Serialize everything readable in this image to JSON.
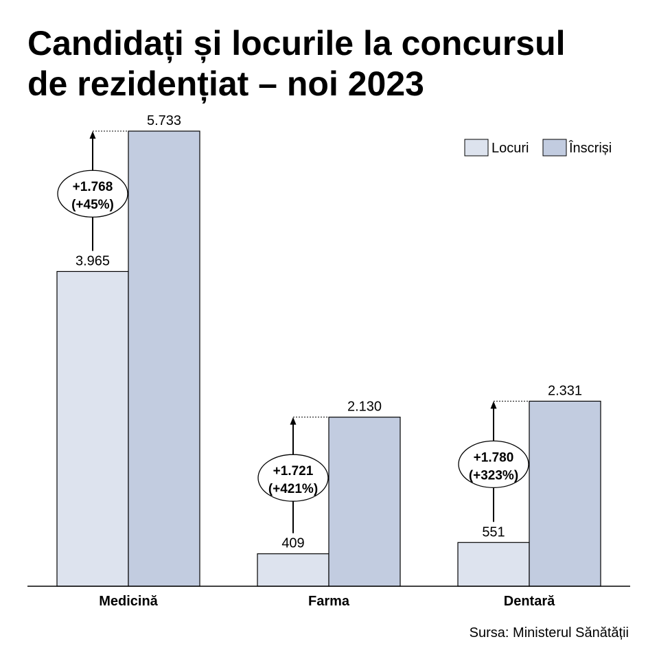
{
  "title_line1": "Candidați și locurile la concursul",
  "title_line2": "de rezidențiat – noi 2023",
  "source": "Sursa: Ministerul Sănătății",
  "colors": {
    "locuri": "#dde3ee",
    "inscrisi": "#c2cce0",
    "stroke": "#000000"
  },
  "chart_data": {
    "type": "bar",
    "title": "Candidați și locurile la concursul de rezidențiat – noi 2023",
    "categories": [
      "Medicină",
      "Farma",
      "Dentară"
    ],
    "series": [
      {
        "name": "Locuri",
        "values": [
          3965,
          409,
          551
        ],
        "labels": [
          "3.965",
          "409",
          "551"
        ]
      },
      {
        "name": "Înscriși",
        "values": [
          5733,
          2130,
          2331
        ],
        "labels": [
          "5.733",
          "2.130",
          "2.331"
        ]
      }
    ],
    "differences": [
      {
        "line1": "+1.768",
        "line2": "(+45%)"
      },
      {
        "line1": "+1.721",
        "line2": "(+421%)"
      },
      {
        "line1": "+1.780",
        "line2": "(+323%)"
      }
    ],
    "ylim": [
      0,
      5733
    ],
    "grid": false,
    "legend_position": "top-right",
    "xlabel": "",
    "ylabel": ""
  }
}
